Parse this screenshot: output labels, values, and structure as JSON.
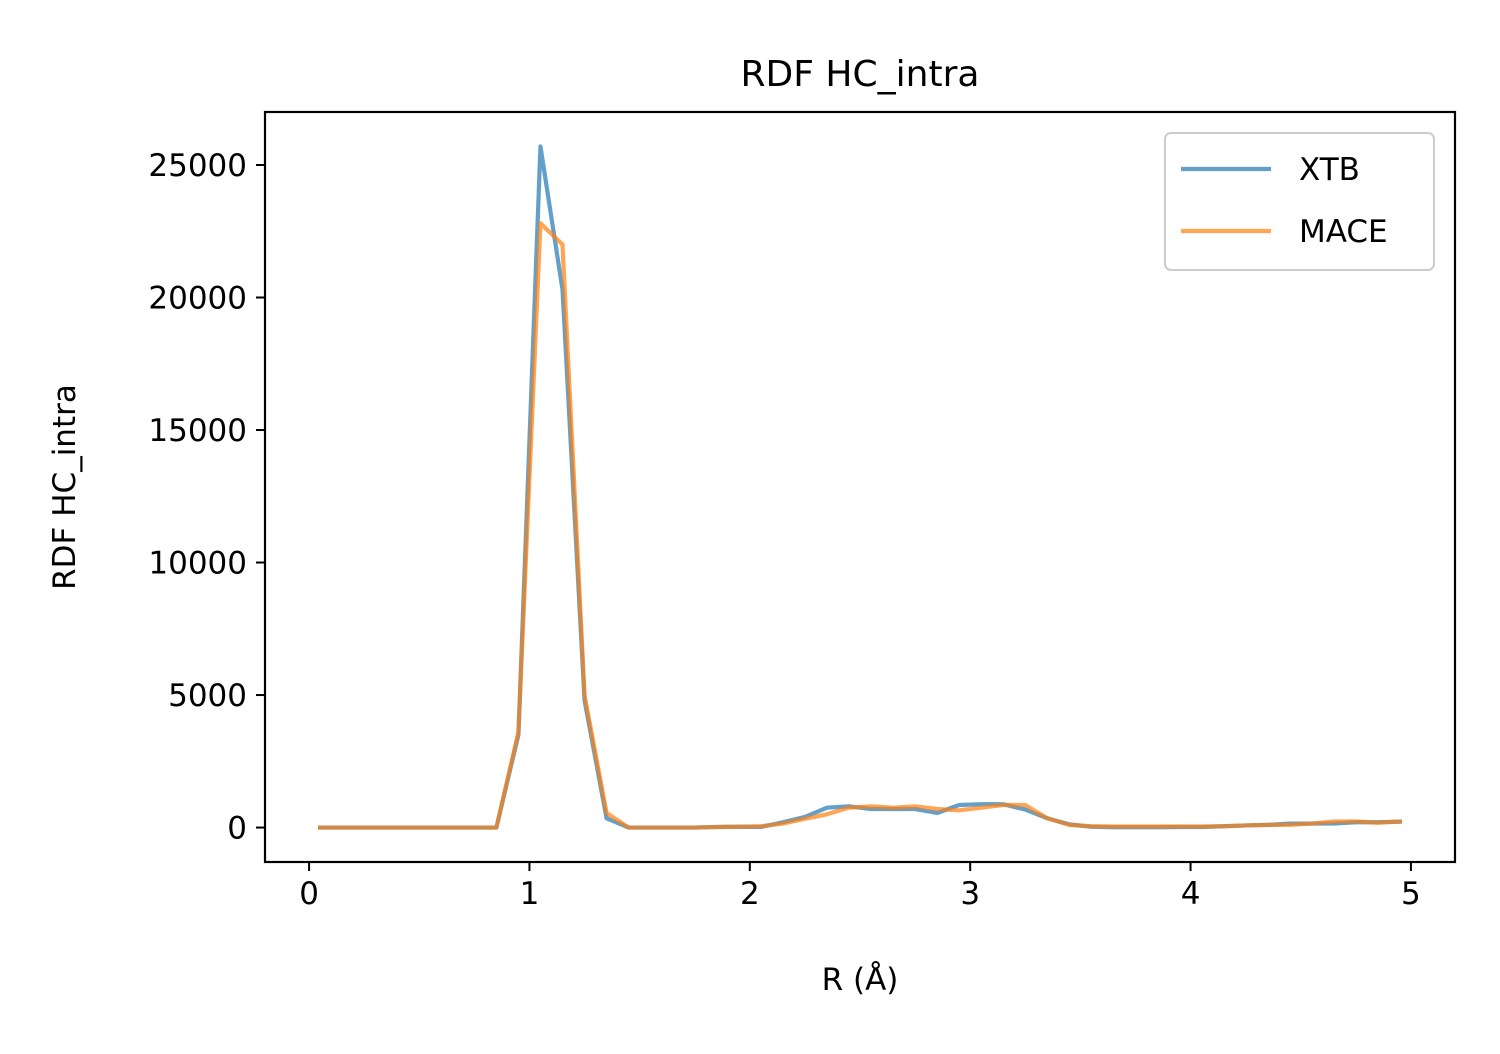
{
  "chart_data": {
    "type": "line",
    "title": "RDF HC_intra",
    "xlabel": "R (Å)",
    "ylabel": "RDF HC_intra",
    "xlim": [
      -0.2,
      5.2
    ],
    "ylim": [
      -1300,
      27000
    ],
    "xticks": [
      0,
      1,
      2,
      3,
      4,
      5
    ],
    "yticks": [
      0,
      5000,
      10000,
      15000,
      20000,
      25000
    ],
    "grid": false,
    "legend_position": "top-right",
    "x": [
      0.05,
      0.15,
      0.25,
      0.35,
      0.45,
      0.55,
      0.65,
      0.75,
      0.85,
      0.95,
      1.05,
      1.15,
      1.25,
      1.35,
      1.45,
      1.55,
      1.65,
      1.75,
      1.85,
      1.95,
      2.05,
      2.15,
      2.25,
      2.35,
      2.45,
      2.55,
      2.65,
      2.75,
      2.85,
      2.95,
      3.05,
      3.15,
      3.25,
      3.35,
      3.45,
      3.55,
      3.65,
      3.75,
      3.85,
      3.95,
      4.05,
      4.15,
      4.25,
      4.35,
      4.45,
      4.55,
      4.65,
      4.75,
      4.85,
      4.95
    ],
    "series": [
      {
        "name": "XTB",
        "color": "#1f77b4",
        "values": [
          0,
          0,
          0,
          0,
          0,
          0,
          0,
          0,
          0,
          3500,
          25700,
          20300,
          4800,
          350,
          0,
          0,
          0,
          0,
          20,
          30,
          20,
          200,
          400,
          750,
          800,
          700,
          700,
          700,
          550,
          850,
          880,
          880,
          680,
          350,
          120,
          30,
          10,
          10,
          10,
          20,
          20,
          50,
          80,
          100,
          150,
          150,
          150,
          200,
          200,
          220
        ]
      },
      {
        "name": "MACE",
        "color": "#ff7f0e",
        "values": [
          0,
          0,
          0,
          0,
          0,
          0,
          0,
          0,
          0,
          3600,
          22800,
          22000,
          5000,
          550,
          0,
          0,
          0,
          0,
          20,
          30,
          50,
          150,
          330,
          500,
          750,
          800,
          750,
          800,
          700,
          650,
          750,
          850,
          850,
          350,
          100,
          50,
          40,
          40,
          40,
          40,
          40,
          50,
          80,
          100,
          100,
          150,
          230,
          230,
          180,
          230
        ]
      }
    ]
  }
}
